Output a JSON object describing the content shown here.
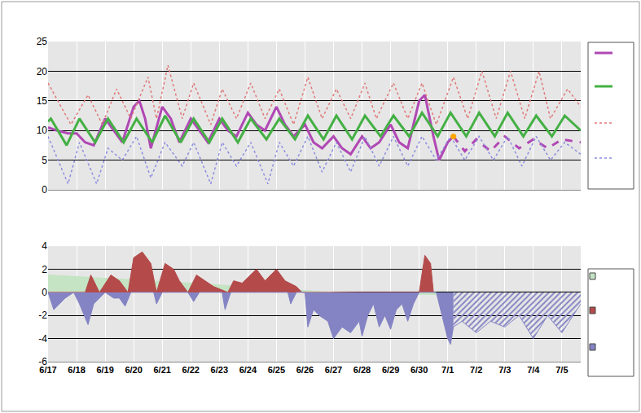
{
  "chart_data": [
    {
      "type": "line",
      "tick_labels": "y",
      "grid": true,
      "xlim": [
        0,
        18.66
      ],
      "xticks": [
        {
          "value": 0,
          "label": "6/17"
        },
        {
          "value": 1,
          "label": "6/18"
        },
        {
          "value": 2,
          "label": "6/19"
        },
        {
          "value": 3,
          "label": "6/20"
        },
        {
          "value": 4,
          "label": "6/21"
        },
        {
          "value": 5,
          "label": "6/22"
        },
        {
          "value": 6,
          "label": "6/23"
        },
        {
          "value": 7,
          "label": "6/24"
        },
        {
          "value": 8,
          "label": "6/25"
        },
        {
          "value": 9,
          "label": "6/26"
        },
        {
          "value": 10,
          "label": "6/27"
        },
        {
          "value": 11,
          "label": "6/28"
        },
        {
          "value": 12,
          "label": "6/29"
        },
        {
          "value": 13,
          "label": "6/30"
        },
        {
          "value": 14,
          "label": "7/1"
        },
        {
          "value": 15,
          "label": "7/2"
        },
        {
          "value": 16,
          "label": "7/3"
        },
        {
          "value": 17,
          "label": "7/4"
        },
        {
          "value": 18,
          "label": "7/5"
        }
      ],
      "ylim": [
        0,
        25
      ],
      "yticks": [
        0,
        5,
        10,
        15,
        20,
        25
      ],
      "series": [
        {
          "color": "#b048b4",
          "line_style": "solid",
          "x": [
            0,
            0.3,
            0.7,
            1,
            1.3,
            1.6,
            2,
            2.3,
            2.6,
            3,
            3.2,
            3.4,
            3.6,
            4,
            4.3,
            4.6,
            5,
            5.3,
            5.6,
            6,
            6.3,
            6.6,
            7,
            7.3,
            7.6,
            8,
            8.3,
            8.6,
            9,
            9.3,
            9.6,
            10,
            10.3,
            10.6,
            11,
            11.3,
            11.6,
            12,
            12.3,
            12.6,
            13,
            13.2,
            13.5,
            13.7,
            14,
            14.2
          ],
          "values": [
            10.5,
            10,
            9.5,
            9.5,
            8,
            7.5,
            12,
            10,
            8,
            14,
            15,
            12,
            7,
            14,
            12,
            8,
            12,
            10,
            8,
            12,
            10,
            9,
            13,
            11,
            10,
            14,
            11,
            9,
            11,
            8,
            7,
            9,
            7,
            6,
            9,
            7,
            8,
            11,
            8,
            7,
            15,
            16,
            9,
            5,
            8,
            9
          ]
        },
        {
          "color": "#b048b4",
          "line_style": "dash",
          "x": [
            14.2,
            14.6,
            15,
            15.5,
            16,
            16.5,
            17,
            17.5,
            18,
            18.66
          ],
          "values": [
            9,
            6.5,
            8.5,
            6.5,
            9,
            7,
            8.5,
            7,
            8.5,
            8
          ]
        },
        {
          "color": "#44b044",
          "line_style": "solid",
          "x": [
            0,
            0.1,
            0.65,
            1.1,
            1.65,
            2.1,
            2.65,
            3.1,
            3.65,
            4.1,
            4.65,
            5.1,
            5.65,
            6.1,
            6.65,
            7.1,
            7.65,
            8.1,
            8.65,
            9.1,
            9.65,
            10.1,
            10.65,
            11.1,
            11.65,
            12.1,
            12.65,
            13.1,
            13.65,
            14.1,
            14.65,
            15.1,
            15.65,
            16.1,
            16.65,
            17.1,
            17.65,
            18.1,
            18.66
          ],
          "values": [
            11.5,
            12,
            7.5,
            12,
            8,
            12,
            8,
            12,
            8,
            12.5,
            8,
            12,
            8,
            12,
            8,
            12,
            8.5,
            12,
            8.5,
            12.5,
            8.5,
            12.5,
            8.5,
            12.5,
            9,
            12.5,
            9,
            13,
            9,
            13,
            9,
            13,
            9,
            13,
            9,
            12.5,
            9,
            12.5,
            10
          ]
        },
        {
          "color": "#e07878",
          "line_style": "dot",
          "x": [
            0,
            0.8,
            1.4,
            1.9,
            2.4,
            2.9,
            3.5,
            3.8,
            4.2,
            4.7,
            5.1,
            5.7,
            6.1,
            6.6,
            7.1,
            7.6,
            8.1,
            8.6,
            9.1,
            9.6,
            10.1,
            10.6,
            11.1,
            11.5,
            12.1,
            12.6,
            13.1,
            13.6,
            14.2,
            14.7,
            15.2,
            15.7,
            16.2,
            16.7,
            17.2,
            17.6,
            18.2,
            18.66
          ],
          "values": [
            18,
            11,
            16,
            11,
            17,
            12,
            19,
            12,
            21,
            12,
            18,
            11,
            17,
            12,
            18,
            12,
            17,
            11,
            19,
            12,
            17,
            12,
            18,
            12,
            18,
            12,
            18,
            11,
            19,
            12,
            20,
            12,
            20,
            12,
            20,
            12,
            17,
            14
          ]
        },
        {
          "color": "#8c8ce0",
          "line_style": "dot",
          "x": [
            0,
            0.7,
            1.1,
            1.7,
            2.1,
            2.6,
            3.1,
            3.6,
            4.1,
            4.7,
            5.1,
            5.7,
            6.1,
            6.6,
            7.1,
            7.7,
            8.1,
            8.6,
            9.1,
            9.6,
            10.1,
            10.6,
            11.1,
            11.6,
            12.1,
            12.6,
            13.1,
            13.6,
            14.1,
            14.6,
            15.1,
            15.6,
            16.1,
            16.6,
            17.1,
            17.6,
            18.1,
            18.66
          ],
          "values": [
            9,
            1,
            8,
            1,
            7,
            5,
            9,
            2,
            8,
            4,
            8,
            1,
            8,
            4,
            8,
            1,
            8,
            4,
            9,
            3,
            8,
            3,
            9,
            4,
            9,
            4,
            9,
            5,
            9,
            5,
            9,
            5,
            9,
            4,
            9,
            5,
            8,
            6
          ]
        },
        {
          "type": "scatter",
          "marker": "circle",
          "color": "#ffa500",
          "x": [
            14.2
          ],
          "values": [
            9
          ]
        }
      ]
    },
    {
      "type": "area",
      "grid": true,
      "xlim": [
        0,
        18.66
      ],
      "xticks": [
        {
          "value": 0,
          "label": "6/17"
        },
        {
          "value": 1,
          "label": "6/18"
        },
        {
          "value": 2,
          "label": "6/19"
        },
        {
          "value": 3,
          "label": "6/20"
        },
        {
          "value": 4,
          "label": "6/21"
        },
        {
          "value": 5,
          "label": "6/22"
        },
        {
          "value": 6,
          "label": "6/23"
        },
        {
          "value": 7,
          "label": "6/24"
        },
        {
          "value": 8,
          "label": "6/25"
        },
        {
          "value": 9,
          "label": "6/26"
        },
        {
          "value": 10,
          "label": "6/27"
        },
        {
          "value": 11,
          "label": "6/28"
        },
        {
          "value": 12,
          "label": "6/29"
        },
        {
          "value": 13,
          "label": "6/30"
        },
        {
          "value": 14,
          "label": "7/1"
        },
        {
          "value": 15,
          "label": "7/2"
        },
        {
          "value": 16,
          "label": "7/3"
        },
        {
          "value": 17,
          "label": "7/4"
        },
        {
          "value": 18,
          "label": "7/5"
        }
      ],
      "ylim": [
        -6,
        4
      ],
      "yticks": [
        -6,
        -4,
        -2,
        0,
        2,
        4
      ],
      "series": [
        {
          "color": "#c4e4c4",
          "line_style": "solid",
          "x": [
            0,
            5,
            10,
            13.6
          ],
          "values": [
            1.5,
            0.8,
            0,
            -0.2
          ]
        },
        {
          "color": "#b44a4a",
          "line_style": "solid",
          "x": [
            0,
            1.3,
            1.5,
            1.8,
            2.2,
            2.5,
            2.8,
            3.0,
            3.3,
            3.6,
            3.8,
            4.1,
            4.4,
            4.6,
            4.9,
            5.2,
            5.5,
            5.8,
            6.3,
            6.5,
            6.8,
            7.1,
            7.3,
            7.6,
            7.8,
            8.0,
            8.3,
            8.7,
            8.9,
            13.0,
            13.2,
            13.4,
            13.5
          ],
          "values": [
            0,
            0,
            1.5,
            0,
            1.5,
            1,
            0,
            3,
            3.5,
            2.5,
            0,
            2.5,
            2,
            1,
            0,
            1.5,
            1,
            0.5,
            0,
            1,
            0.8,
            1.5,
            2,
            1,
            1.5,
            2,
            1,
            0.5,
            0,
            0,
            3.2,
            2.5,
            0
          ]
        },
        {
          "color": "#8484c4",
          "line_style": "solid",
          "x": [
            0,
            0.2,
            0.4,
            0.6,
            0.9,
            1.1,
            1.4,
            1.6,
            1.8,
            2.0,
            2.3,
            2.5,
            2.7,
            2.9,
            3.7,
            3.8,
            4.0,
            4.9,
            5.1,
            5.3,
            6.1,
            6.2,
            6.4,
            8.4,
            8.5,
            8.7,
            9.0,
            9.1,
            9.3,
            9.5,
            9.8,
            10.0,
            10.3,
            10.6,
            10.9,
            11.0,
            11.2,
            11.4,
            11.6,
            11.8,
            12.0,
            12.2,
            12.4,
            12.6,
            12.8,
            13.0,
            13.6,
            13.8,
            14.0,
            14.1,
            14.2
          ],
          "values": [
            0,
            -1.5,
            -1,
            -0.5,
            0,
            -1,
            -2.8,
            -1,
            -0.5,
            0,
            -0.5,
            -0.5,
            -1.2,
            0,
            0,
            -1,
            0,
            0,
            -0.8,
            0,
            0,
            -1.5,
            0,
            0,
            -1,
            0,
            0,
            -3,
            -1.5,
            -2,
            -2.5,
            -4,
            -3,
            -3.5,
            -2.5,
            -3.8,
            -2,
            -1,
            -3,
            -2,
            -3.2,
            -1.5,
            -1,
            -2.5,
            -1,
            0,
            0,
            -2,
            -4,
            -4.5,
            -3
          ]
        },
        {
          "color": "#8484c4",
          "line_style": "hatched",
          "x": [
            14.2,
            14.5,
            15,
            15.5,
            16,
            16.5,
            17,
            17.5,
            18,
            18.4,
            18.66
          ],
          "values": [
            -3,
            -2.5,
            -3.5,
            -2.5,
            -3,
            -2,
            -4,
            -2,
            -3.5,
            -2,
            -1
          ]
        }
      ]
    }
  ]
}
